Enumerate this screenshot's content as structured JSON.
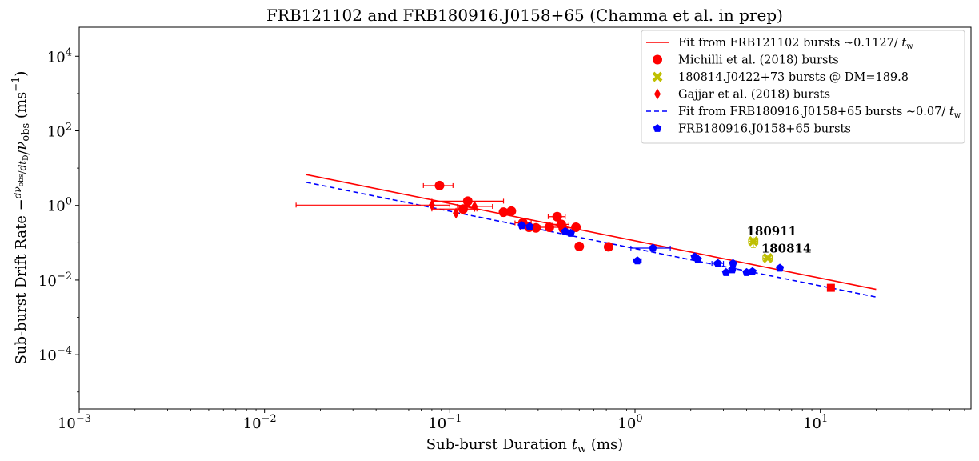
{
  "chart_data": {
    "type": "scatter",
    "title": "FRB121102 and FRB180916.J0158+65 (Chamma et al. in prep)",
    "xlabel": "Sub-burst Duration t_w (ms)",
    "ylabel": "Sub-burst Drift Rate −(dν_obs/dt_D)/ν_obs (ms⁻¹)",
    "x_scale": "log",
    "y_scale": "log",
    "xlim": [
      0.001,
      65
    ],
    "ylim": [
      3.5e-06,
      60000
    ],
    "x_ticks": [
      {
        "value": 0.001,
        "label": "10⁻³"
      },
      {
        "value": 0.01,
        "label": "10⁻²"
      },
      {
        "value": 0.1,
        "label": "10⁻¹"
      },
      {
        "value": 1,
        "label": "10⁰"
      },
      {
        "value": 10,
        "label": "10¹"
      }
    ],
    "y_ticks": [
      {
        "value": 0.0001,
        "label": "10⁻⁴"
      },
      {
        "value": 0.01,
        "label": "10⁻²"
      },
      {
        "value": 1,
        "label": "10⁰"
      },
      {
        "value": 100,
        "label": "10²"
      },
      {
        "value": 10000,
        "label": "10⁴"
      }
    ],
    "legend_position": "top-right",
    "series": [
      {
        "name": "Fit from FRB121102 bursts ~0.1127/ t_w",
        "kind": "line",
        "style": "solid",
        "color": "#ff0000",
        "coefficient": 0.1127,
        "x_range": [
          0.0168,
          20
        ]
      },
      {
        "name": "Michilli et al. (2018) bursts",
        "kind": "points",
        "marker": "circle",
        "color": "#ff0000",
        "points": [
          {
            "x": 0.088,
            "y": 3.4,
            "xerr": [
              0.072,
              0.104
            ]
          },
          {
            "x": 0.118,
            "y": 0.8,
            "xerr": [
              0.08,
              0.14
            ]
          },
          {
            "x": 0.125,
            "y": 1.3,
            "xerr": [
              0.08,
              0.195
            ]
          },
          {
            "x": 0.195,
            "y": 0.66
          },
          {
            "x": 0.215,
            "y": 0.7
          },
          {
            "x": 0.248,
            "y": 0.34,
            "xerr": [
              0.225,
              0.275
            ]
          },
          {
            "x": 0.268,
            "y": 0.26,
            "xerr": [
              0.24,
              0.3
            ]
          },
          {
            "x": 0.292,
            "y": 0.25
          },
          {
            "x": 0.345,
            "y": 0.26,
            "xerr": [
              0.31,
              0.39
            ]
          },
          {
            "x": 0.38,
            "y": 0.5,
            "xerr": [
              0.34,
              0.42
            ]
          },
          {
            "x": 0.4,
            "y": 0.31,
            "xerr": [
              0.36,
              0.44
            ]
          },
          {
            "x": 0.41,
            "y": 0.24
          },
          {
            "x": 0.48,
            "y": 0.26
          },
          {
            "x": 0.5,
            "y": 0.08
          },
          {
            "x": 0.72,
            "y": 0.078
          }
        ]
      },
      {
        "name": "180814.J0422+73 bursts @ DM=189.8",
        "kind": "points",
        "marker": "x",
        "color": "#bfbf00",
        "points": [
          {
            "x": 4.35,
            "y": 0.11,
            "xerr": [
              4.1,
              4.6
            ],
            "yerr": [
              0.075,
              0.14
            ]
          },
          {
            "x": 5.2,
            "y": 0.039,
            "xerr": [
              4.9,
              5.5
            ]
          }
        ]
      },
      {
        "name": "Gajjar et al. (2018) bursts",
        "kind": "points",
        "marker": "diamond",
        "color": "#ff0000",
        "points": [
          {
            "x": 0.08,
            "y": 1.02,
            "xerr": [
              0.0148,
              0.1
            ]
          },
          {
            "x": 0.108,
            "y": 0.62
          },
          {
            "x": 0.136,
            "y": 0.94,
            "xerr": [
              0.11,
              0.17
            ]
          }
        ]
      },
      {
        "name": "Fit from FRB180916.J0158+65 bursts ~0.07/ t_w",
        "kind": "line",
        "style": "dashed",
        "color": "#0000ff",
        "coefficient": 0.07,
        "x_range": [
          0.0168,
          20
        ]
      },
      {
        "name": "FRB180916.J0158+65 bursts",
        "kind": "points",
        "marker": "pentagon",
        "color": "#0000ff",
        "points": [
          {
            "x": 0.245,
            "y": 0.29
          },
          {
            "x": 0.27,
            "y": 0.27
          },
          {
            "x": 0.42,
            "y": 0.2
          },
          {
            "x": 0.45,
            "y": 0.18
          },
          {
            "x": 1.03,
            "y": 0.033,
            "xerr": [
              0.98,
              1.08
            ]
          },
          {
            "x": 1.25,
            "y": 0.072,
            "xerr": [
              0.95,
              1.55
            ]
          },
          {
            "x": 2.1,
            "y": 0.042
          },
          {
            "x": 2.18,
            "y": 0.036
          },
          {
            "x": 2.8,
            "y": 0.028,
            "xerr": [
              2.6,
              3.0
            ]
          },
          {
            "x": 3.1,
            "y": 0.016
          },
          {
            "x": 3.35,
            "y": 0.019
          },
          {
            "x": 3.38,
            "y": 0.028
          },
          {
            "x": 4.0,
            "y": 0.016
          },
          {
            "x": 4.3,
            "y": 0.017
          },
          {
            "x": 6.05,
            "y": 0.021
          }
        ]
      },
      {
        "name": "",
        "kind": "points",
        "marker": "square",
        "color": "#ff0000",
        "points": [
          {
            "x": 11.4,
            "y": 0.0062
          }
        ]
      }
    ],
    "annotations": [
      {
        "text": "180911",
        "x": 4.0,
        "y": 0.16
      },
      {
        "text": "180814",
        "x": 4.8,
        "y": 0.055
      }
    ]
  }
}
